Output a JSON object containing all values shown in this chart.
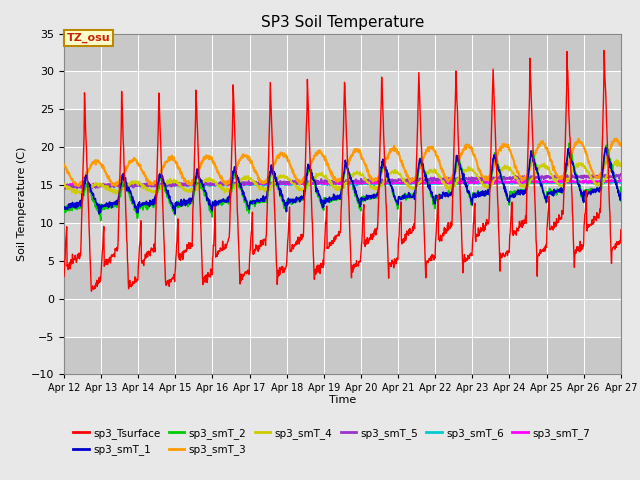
{
  "title": "SP3 Soil Temperature",
  "ylabel": "Soil Temperature (C)",
  "xlabel": "Time",
  "ylim": [
    -10,
    35
  ],
  "yticks": [
    -10,
    -5,
    0,
    5,
    10,
    15,
    20,
    25,
    30,
    35
  ],
  "xtick_labels": [
    "Apr 12",
    "Apr 13",
    "Apr 14",
    "Apr 15",
    "Apr 16",
    "Apr 17",
    "Apr 18",
    "Apr 19",
    "Apr 20",
    "Apr 21",
    "Apr 22",
    "Apr 23",
    "Apr 24",
    "Apr 25",
    "Apr 26",
    "Apr 27"
  ],
  "tz_label": "TZ_osu",
  "legend_entries": [
    {
      "label": "sp3_Tsurface",
      "color": "#FF0000"
    },
    {
      "label": "sp3_smT_1",
      "color": "#0000CC"
    },
    {
      "label": "sp3_smT_2",
      "color": "#00CC00"
    },
    {
      "label": "sp3_smT_3",
      "color": "#FF9900"
    },
    {
      "label": "sp3_smT_4",
      "color": "#CCCC00"
    },
    {
      "label": "sp3_smT_5",
      "color": "#9933CC"
    },
    {
      "label": "sp3_smT_6",
      "color": "#00CCCC"
    },
    {
      "label": "sp3_smT_7",
      "color": "#FF00FF"
    }
  ],
  "bg_color": "#E8E8E8",
  "plot_bg_color": "#DCDCDC",
  "band_colors": [
    "#C8C8C8",
    "#E0E0E0"
  ]
}
